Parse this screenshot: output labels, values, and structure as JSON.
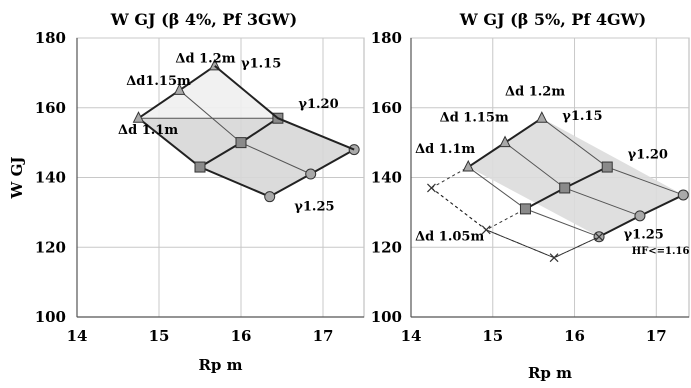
{
  "chart_data": [
    {
      "type": "line",
      "title": "W GJ (β 4%, Pf 3GW)",
      "xlabel": "Rp m",
      "ylabel": "W GJ",
      "xlim": [
        14,
        17.5
      ],
      "ylim": [
        100,
        180
      ],
      "xticks": [
        "14",
        "15",
        "16",
        "17"
      ],
      "yticks": [
        "100",
        "120",
        "140",
        "160",
        "180"
      ],
      "grid": true,
      "series": [
        {
          "name": "Δd 1.1m",
          "marker": "none",
          "x": [
            14.75,
            15.5,
            16.35
          ],
          "y": [
            157,
            143,
            134.5
          ]
        },
        {
          "name": "",
          "marker": "square",
          "x": [
            15.5,
            16.0,
            16.45
          ],
          "y": [
            143,
            150,
            157
          ]
        },
        {
          "name": "",
          "marker": "circle",
          "x": [
            16.35,
            16.85,
            17.38
          ],
          "y": [
            134.5,
            141,
            148
          ]
        },
        {
          "name": "γ1.15",
          "marker": "triangle",
          "x": [
            14.75,
            15.25,
            15.68
          ],
          "y": [
            157,
            165,
            172
          ]
        },
        {
          "name": "",
          "marker": "none",
          "x": [
            15.68,
            16.45,
            17.38
          ],
          "y": [
            172,
            157,
            148
          ]
        }
      ],
      "grid_lines": [
        {
          "x": [
            15.25,
            16.0,
            16.85
          ],
          "y": [
            165,
            150,
            141
          ]
        },
        {
          "x": [
            14.75,
            16.45
          ],
          "y": [
            157,
            157
          ]
        }
      ],
      "annotations": [
        {
          "text": "Δd 1.2m",
          "x": 15.2,
          "y": 173
        },
        {
          "text": "Δd1.15m",
          "x": 14.6,
          "y": 166.5
        },
        {
          "text": "Δd 1.1m",
          "x": 14.5,
          "y": 152.5
        },
        {
          "text": "γ1.15",
          "x": 16.0,
          "y": 171.5
        },
        {
          "text": "γ1.20",
          "x": 16.7,
          "y": 160
        },
        {
          "text": "γ1.25",
          "x": 16.65,
          "y": 130.5
        }
      ]
    },
    {
      "type": "line",
      "title": "W GJ (β 5%, Pf 4GW)",
      "xlabel": "Rp m",
      "ylabel": "",
      "xlim": [
        14,
        17.4
      ],
      "ylim": [
        100,
        180
      ],
      "xticks": [
        "14",
        "15",
        "16",
        "17"
      ],
      "yticks": [
        "100",
        "120",
        "140",
        "160",
        "180"
      ],
      "grid": true,
      "series": [
        {
          "name": "Δd 1.1m",
          "marker": "triangle",
          "x": [
            14.7,
            15.15,
            15.6
          ],
          "y": [
            143,
            150,
            157
          ]
        },
        {
          "name": "",
          "marker": "square",
          "x": [
            15.4,
            15.88,
            16.4
          ],
          "y": [
            131,
            137,
            143
          ]
        },
        {
          "name": "",
          "marker": "circle",
          "x": [
            16.3,
            16.8,
            17.33
          ],
          "y": [
            123,
            129,
            135
          ]
        },
        {
          "name": "HF<=1.16",
          "marker": "x",
          "x": [
            14.25,
            14.92,
            15.75,
            16.3
          ],
          "y": [
            137,
            125,
            117,
            123
          ]
        }
      ],
      "grid_lines": [
        {
          "x": [
            14.7,
            15.4,
            16.3
          ],
          "y": [
            143,
            131,
            123
          ]
        },
        {
          "x": [
            15.15,
            15.88,
            16.8
          ],
          "y": [
            150,
            137,
            129
          ]
        },
        {
          "x": [
            15.6,
            16.4,
            17.33
          ],
          "y": [
            157,
            143,
            135
          ]
        }
      ],
      "dashed_lines": [
        {
          "x": [
            14.25,
            14.7
          ],
          "y": [
            137,
            143
          ]
        },
        {
          "x": [
            14.25,
            14.92,
            15.4
          ],
          "y": [
            137,
            125,
            131
          ]
        },
        {
          "x": [
            14.92,
            15.75,
            16.3
          ],
          "y": [
            125,
            117,
            123
          ]
        }
      ],
      "annotations": [
        {
          "text": "Δd 1.2m",
          "x": 15.15,
          "y": 163.5
        },
        {
          "text": "Δd 1.15m",
          "x": 14.35,
          "y": 156
        },
        {
          "text": "Δd 1.1m",
          "x": 14.05,
          "y": 147
        },
        {
          "text": "Δd 1.05m",
          "x": 14.05,
          "y": 122
        },
        {
          "text": "γ1.15",
          "x": 15.85,
          "y": 156.5
        },
        {
          "text": "γ1.20",
          "x": 16.65,
          "y": 145.5
        },
        {
          "text": "γ1.25",
          "x": 16.6,
          "y": 122.5
        },
        {
          "text": "HF<=1.16",
          "x": 16.7,
          "y": 118
        }
      ]
    }
  ]
}
